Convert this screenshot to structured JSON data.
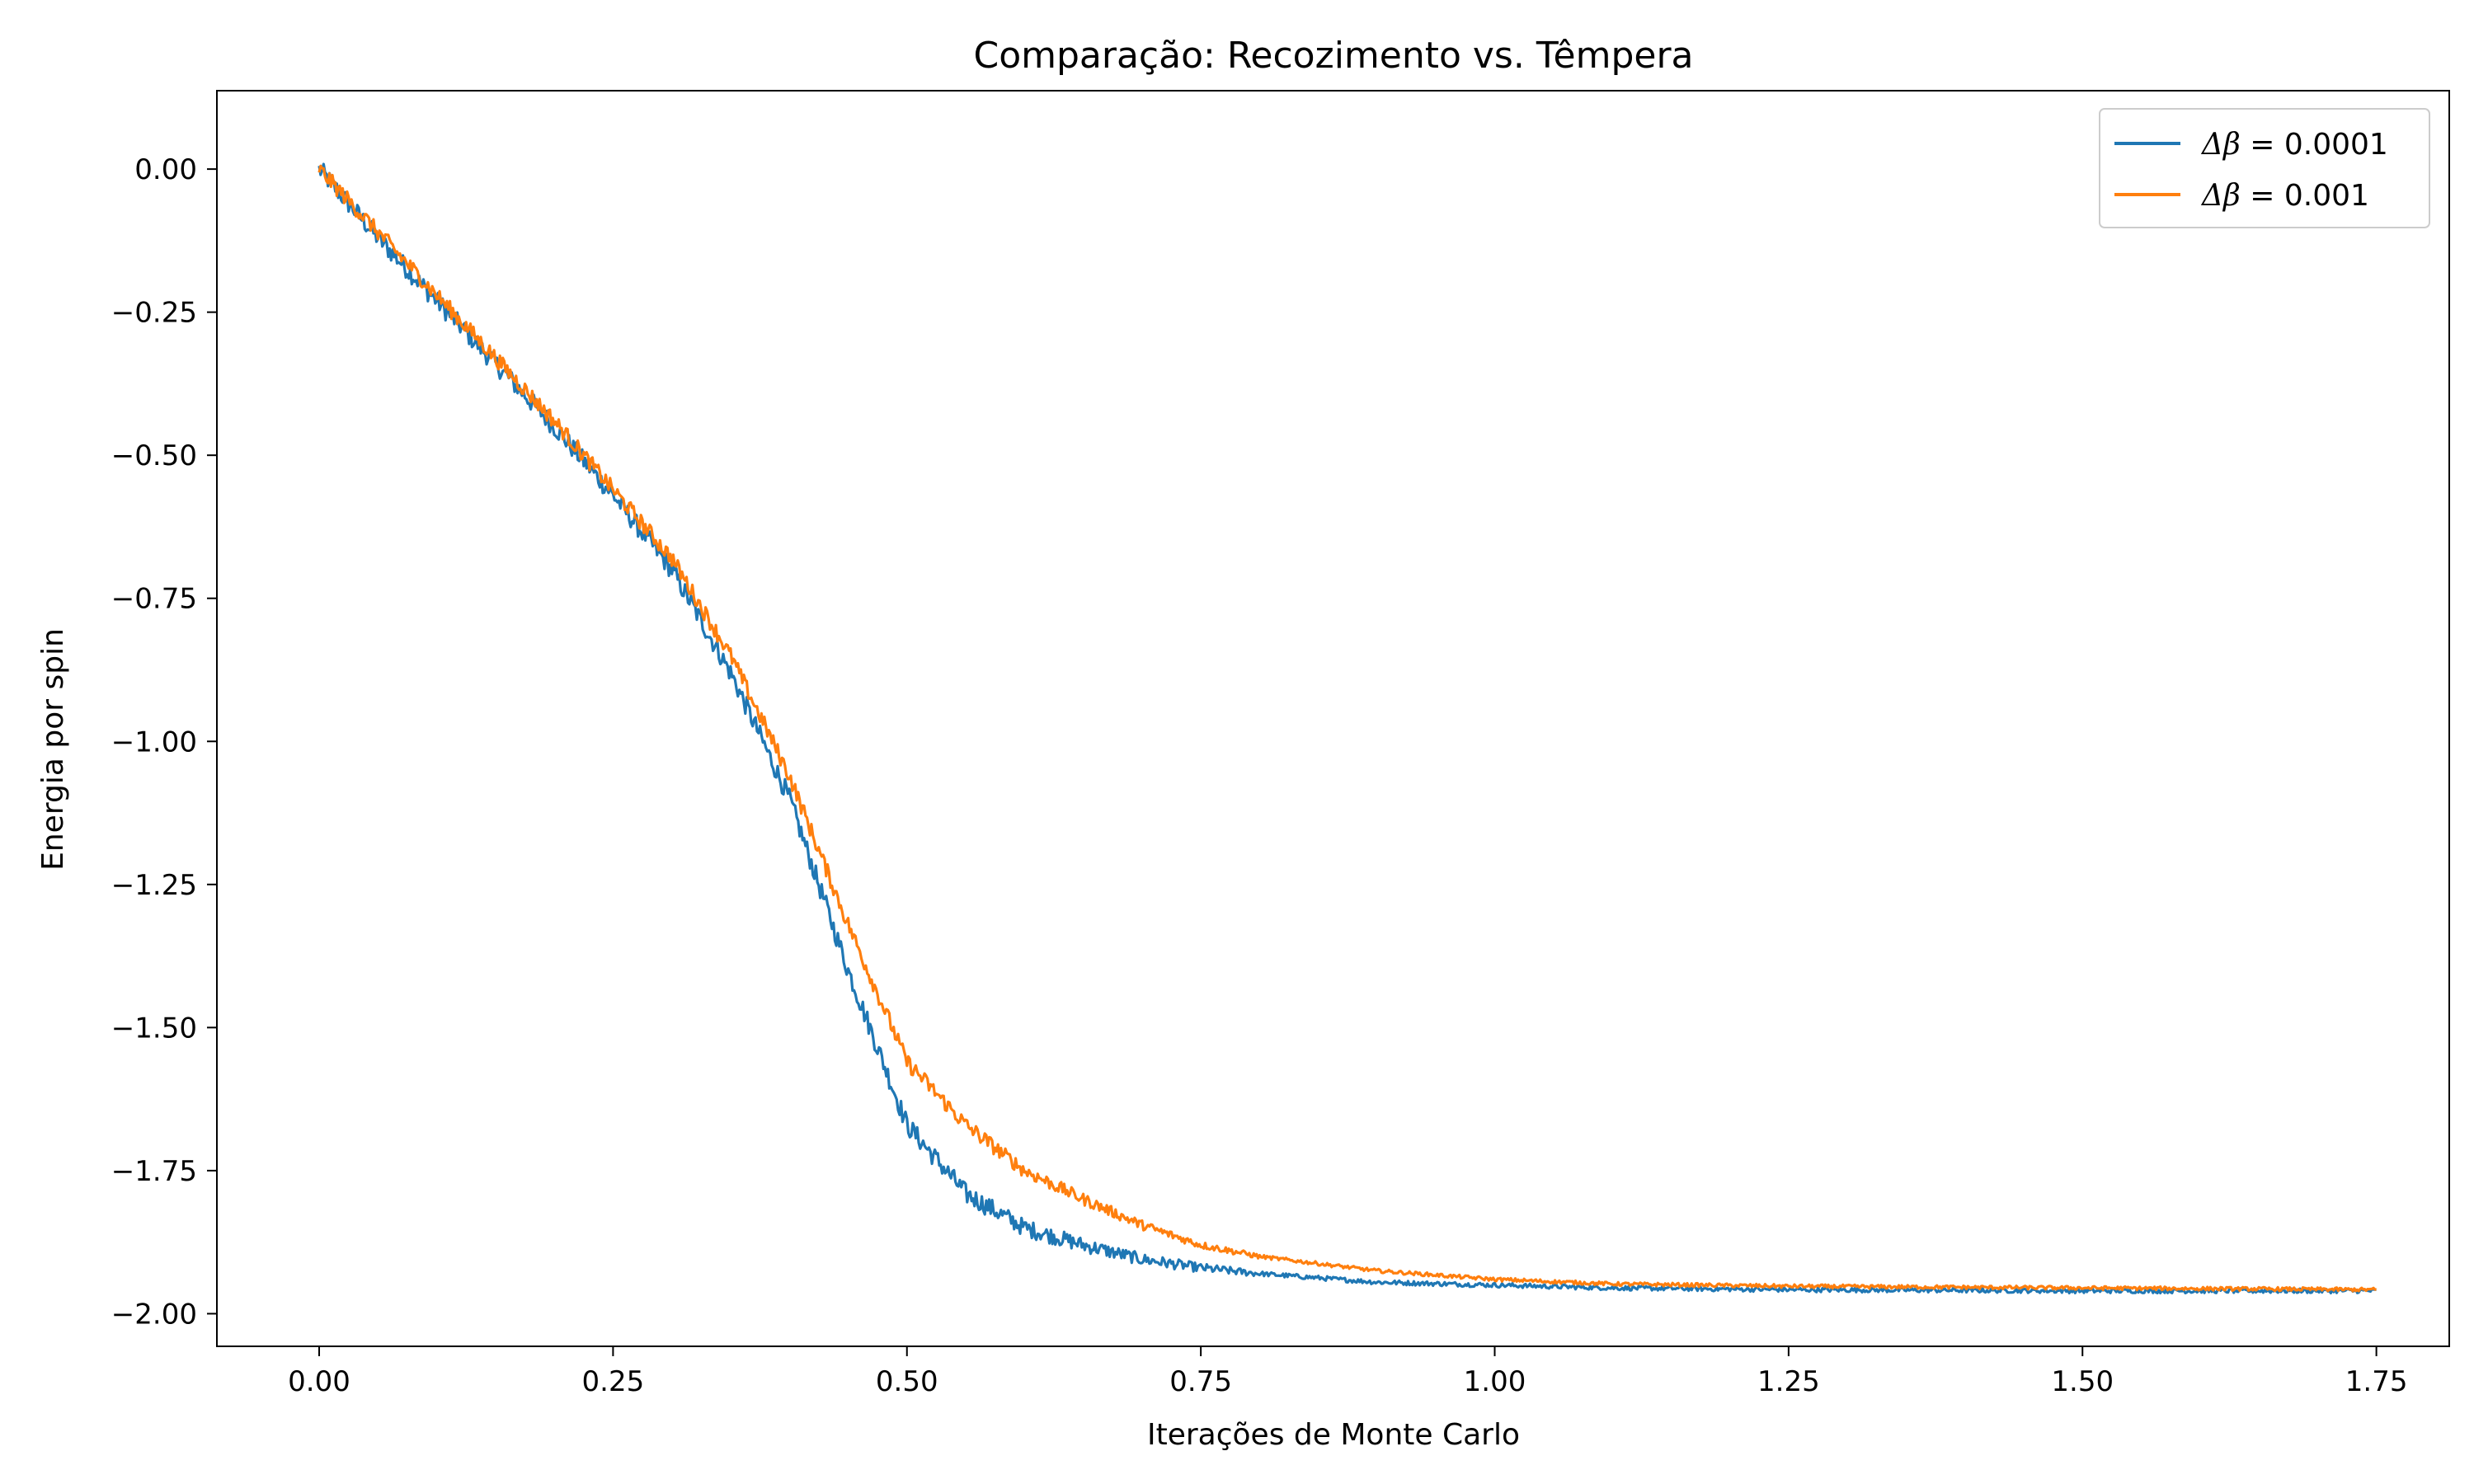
{
  "chart_data": {
    "type": "line",
    "title": "Comparação: Recozimento vs. Têmpera",
    "xlabel": "Iterações de Monte Carlo",
    "ylabel": "Energia por spin",
    "xlim": [
      -0.087,
      1.812
    ],
    "ylim": [
      -2.057,
      0.137
    ],
    "x_ticks": [
      0.0,
      0.25,
      0.5,
      0.75,
      1.0,
      1.25,
      1.5,
      1.75
    ],
    "x_tick_labels": [
      "0.00",
      "0.25",
      "0.50",
      "0.75",
      "1.00",
      "1.25",
      "1.50",
      "1.75"
    ],
    "y_ticks": [
      0.0,
      -0.25,
      -0.5,
      -0.75,
      -1.0,
      -1.25,
      -1.5,
      -1.75,
      -2.0
    ],
    "y_tick_labels": [
      "0.00",
      "−0.25",
      "−0.50",
      "−0.75",
      "−1.00",
      "−1.25",
      "−1.50",
      "−1.75",
      "−2.00"
    ],
    "grid": false,
    "legend_position": "top-right",
    "series": [
      {
        "name": "Δβ = 0.0001",
        "legend_symbol": "Δβ",
        "legend_value": "= 0.0001",
        "color": "#1f77b4",
        "x": [
          0,
          0.05,
          0.1,
          0.15,
          0.2,
          0.25,
          0.3,
          0.35,
          0.4,
          0.45,
          0.5,
          0.55,
          0.6,
          0.65,
          0.7,
          0.75,
          0.8,
          0.9,
          1.0,
          1.1,
          1.25,
          1.5,
          1.75
        ],
        "y": [
          0.0,
          -0.12,
          -0.23,
          -0.34,
          -0.45,
          -0.57,
          -0.7,
          -0.88,
          -1.1,
          -1.4,
          -1.67,
          -1.79,
          -1.85,
          -1.88,
          -1.905,
          -1.92,
          -1.93,
          -1.945,
          -1.95,
          -1.955,
          -1.958,
          -1.96,
          -1.96
        ]
      },
      {
        "name": "Δβ = 0.001",
        "legend_symbol": "Δβ",
        "legend_value": "= 0.001",
        "color": "#ff7f0e",
        "x": [
          0,
          0.05,
          0.1,
          0.15,
          0.2,
          0.25,
          0.3,
          0.35,
          0.4,
          0.45,
          0.5,
          0.55,
          0.6,
          0.65,
          0.7,
          0.75,
          0.8,
          0.9,
          1.0,
          1.1,
          1.25,
          1.5,
          1.75
        ],
        "y": [
          0.0,
          -0.11,
          -0.22,
          -0.33,
          -0.44,
          -0.56,
          -0.68,
          -0.85,
          -1.06,
          -1.32,
          -1.56,
          -1.67,
          -1.75,
          -1.8,
          -1.845,
          -1.88,
          -1.9,
          -1.925,
          -1.94,
          -1.948,
          -1.952,
          -1.955,
          -1.958
        ]
      }
    ]
  }
}
